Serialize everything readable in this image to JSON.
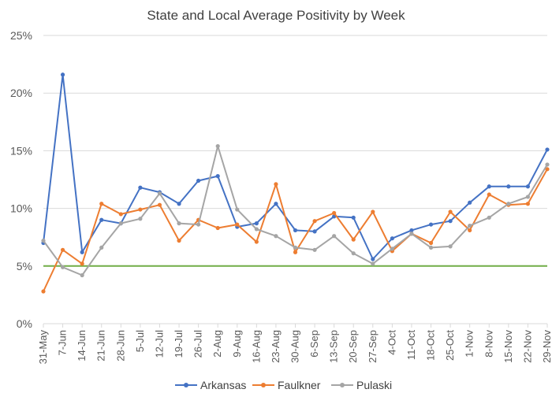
{
  "chart_data": {
    "type": "line",
    "title": "State and Local Average Positivity by Week",
    "xlabel": "",
    "ylabel": "",
    "ylim": [
      0,
      25
    ],
    "yticks": [
      0,
      5,
      10,
      15,
      20,
      25
    ],
    "ytick_labels": [
      "0%",
      "5%",
      "10%",
      "15%",
      "20%",
      "25%"
    ],
    "grid": true,
    "legend_position": "bottom",
    "categories": [
      "31-May",
      "7-Jun",
      "14-Jun",
      "21-Jun",
      "28-Jun",
      "5-Jul",
      "12-Jul",
      "19-Jul",
      "26-Jul",
      "2-Aug",
      "9-Aug",
      "16-Aug",
      "23-Aug",
      "30-Aug",
      "6-Sep",
      "13-Sep",
      "20-Sep",
      "27-Sep",
      "4-Oct",
      "11-Oct",
      "18-Oct",
      "25-Oct",
      "1-Nov",
      "8-Nov",
      "15-Nov",
      "22-Nov",
      "29-Nov"
    ],
    "series": [
      {
        "name": "Arkansas",
        "color": "#4472C4",
        "values": [
          7.0,
          21.6,
          6.2,
          9.0,
          8.7,
          11.8,
          11.4,
          10.4,
          12.4,
          12.8,
          8.4,
          8.7,
          10.4,
          8.1,
          8.0,
          9.3,
          9.2,
          5.6,
          7.4,
          8.1,
          8.6,
          8.9,
          10.5,
          11.9,
          11.9,
          11.9,
          15.1
        ]
      },
      {
        "name": "Faulkner",
        "color": "#ED7D31",
        "values": [
          2.8,
          6.4,
          5.2,
          10.4,
          9.5,
          9.9,
          10.3,
          7.2,
          9.0,
          8.3,
          8.6,
          7.1,
          12.1,
          6.2,
          8.9,
          9.6,
          7.3,
          9.7,
          6.3,
          7.8,
          7.0,
          9.7,
          8.1,
          11.2,
          10.3,
          10.4,
          13.4
        ]
      },
      {
        "name": "Pulaski",
        "color": "#A5A5A5",
        "values": [
          7.2,
          4.9,
          4.2,
          6.6,
          8.7,
          9.1,
          11.3,
          8.7,
          8.6,
          15.4,
          9.9,
          8.2,
          7.6,
          6.6,
          6.4,
          7.6,
          6.1,
          5.2,
          6.5,
          7.8,
          6.6,
          6.7,
          8.5,
          9.2,
          10.4,
          11.0,
          13.8
        ]
      }
    ],
    "reference_line": {
      "value": 5,
      "color": "#70AD47"
    }
  }
}
